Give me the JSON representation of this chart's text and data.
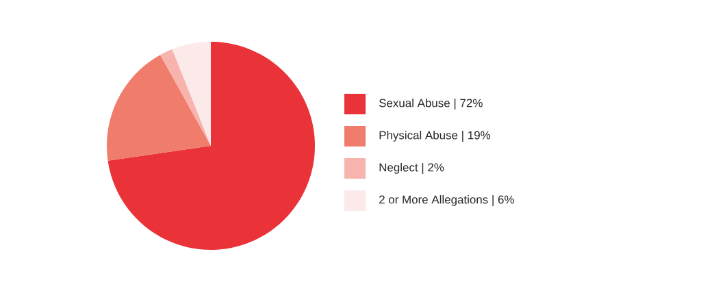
{
  "chart_data": {
    "type": "pie",
    "categories": [
      "Sexual Abuse | 72%",
      "Physical Abuse | 19%",
      "Neglect | 2%",
      "2 or More Allegations | 6%"
    ],
    "values": [
      72,
      19,
      2,
      6
    ],
    "colors": [
      "#e93339",
      "#f07c6c",
      "#f6b4ad",
      "#fce9ea"
    ],
    "legend": "right"
  }
}
